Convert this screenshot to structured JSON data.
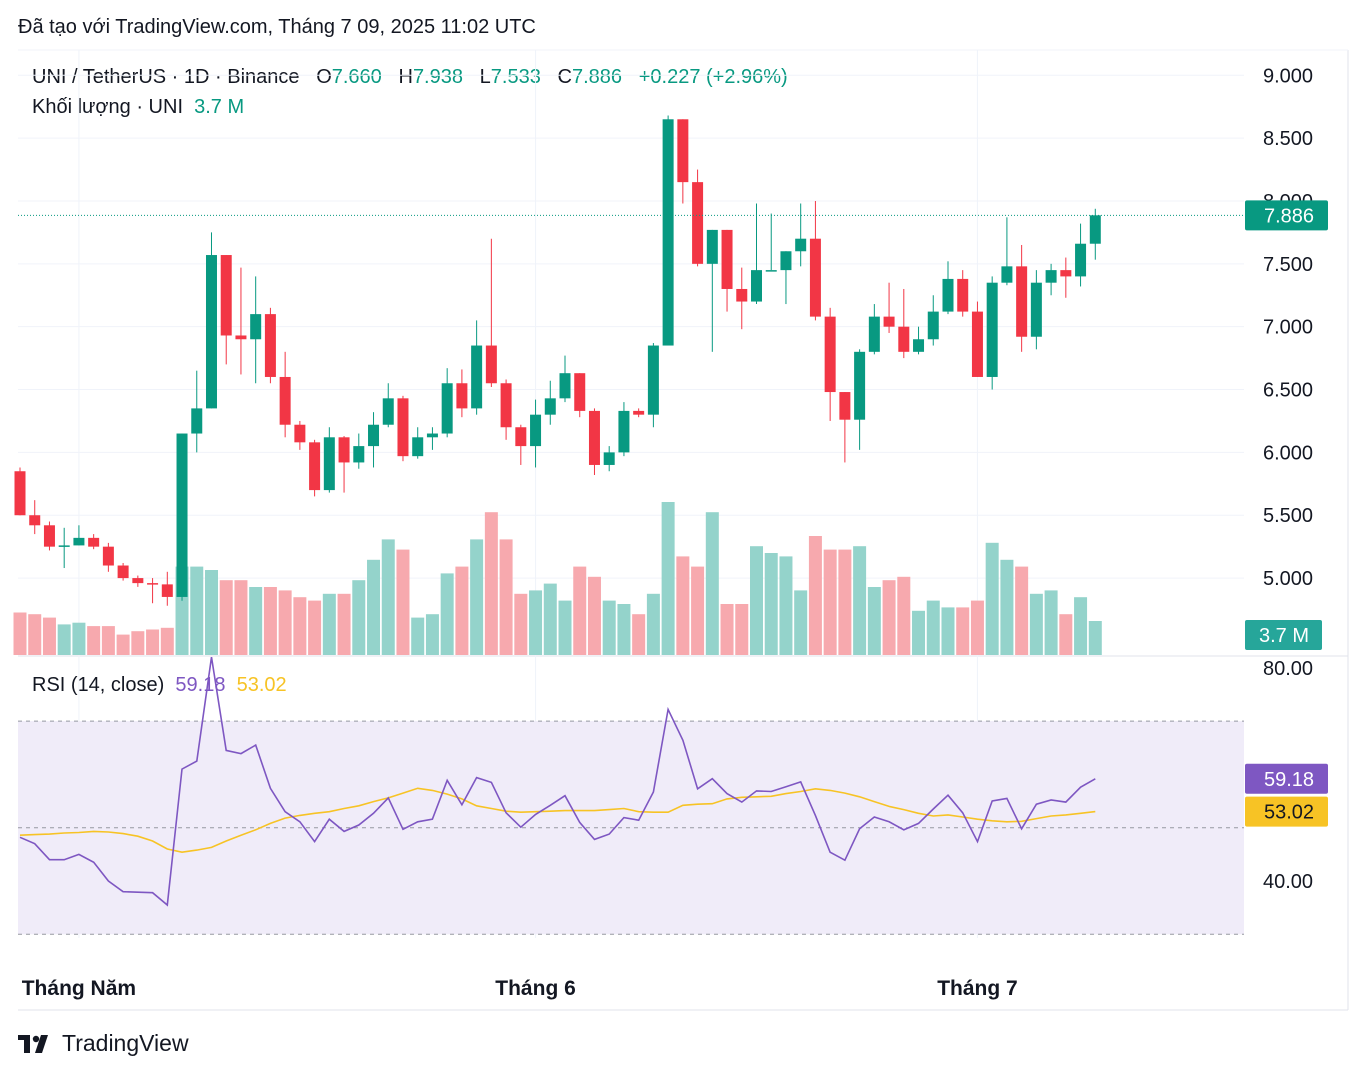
{
  "caption": "Đã tạo với TradingView.com, Tháng 7 09, 2025 11:02 UTC",
  "brand": {
    "name": "TradingView",
    "logo_text": "17"
  },
  "legend": {
    "pair": "UNI / TetherUS · 1D · Binance",
    "o_label": "O",
    "o_value": "7.660",
    "h_label": "H",
    "h_value": "7.938",
    "l_label": "L",
    "l_value": "7.533",
    "c_label": "C",
    "c_value": "7.886",
    "change": "+0.227 (+2.96%)",
    "volume_label": "Khối lượng · UNI",
    "volume_value": "3.7 M",
    "rsi_label": "RSI (14, close)",
    "rsi_value": "59.18",
    "rsi_ma_value": "53.02"
  },
  "colors": {
    "up": "#089981",
    "down": "#f23645",
    "vol_up": "#94d3cb",
    "vol_down": "#f7a9ae",
    "rsi": "#7e57c2",
    "rsi_ma": "#f7c325",
    "rsi_band": "#f0ecf9"
  },
  "chart_data": [
    {
      "type": "candlestick",
      "price_ticks": [
        "9.000",
        "8.500",
        "8.000",
        "7.500",
        "7.000",
        "6.500",
        "6.000",
        "5.500",
        "5.000"
      ],
      "price_range": [
        4.4,
        9.05
      ],
      "last_price_label": "7.886",
      "volume_last_label": "3.7 M",
      "x_labels": [
        {
          "label": "Tháng Năm",
          "index": 4
        },
        {
          "label": "Tháng 6",
          "index": 35
        },
        {
          "label": "Tháng 7",
          "index": 65
        }
      ],
      "candles": [
        [
          5.85,
          5.5,
          5.88,
          5.5,
          1.25
        ],
        [
          5.5,
          5.42,
          5.62,
          5.35,
          1.2
        ],
        [
          5.42,
          5.25,
          5.45,
          5.22,
          1.1
        ],
        [
          5.26,
          5.26,
          5.4,
          5.08,
          0.9
        ],
        [
          5.26,
          5.32,
          5.42,
          5.26,
          0.95
        ],
        [
          5.32,
          5.25,
          5.35,
          5.23,
          0.85
        ],
        [
          5.25,
          5.1,
          5.28,
          5.05,
          0.85
        ],
        [
          5.1,
          5.0,
          5.12,
          4.98,
          0.6
        ],
        [
          5.0,
          4.96,
          5.02,
          4.93,
          0.7
        ],
        [
          4.96,
          4.95,
          5.0,
          4.8,
          0.75
        ],
        [
          4.95,
          4.85,
          5.05,
          4.78,
          0.8
        ],
        [
          4.85,
          6.15,
          6.15,
          4.82,
          2.6
        ],
        [
          6.15,
          6.35,
          6.65,
          6.0,
          2.6
        ],
        [
          6.35,
          7.57,
          7.75,
          6.35,
          2.5
        ],
        [
          7.57,
          6.93,
          7.57,
          6.7,
          2.2
        ],
        [
          6.93,
          6.9,
          7.47,
          6.62,
          2.2
        ],
        [
          6.9,
          7.1,
          7.4,
          6.55,
          2.0
        ],
        [
          7.1,
          6.6,
          7.15,
          6.55,
          2.0
        ],
        [
          6.6,
          6.22,
          6.8,
          6.12,
          1.9
        ],
        [
          6.22,
          6.08,
          6.25,
          6.02,
          1.7
        ],
        [
          6.08,
          5.7,
          6.1,
          5.65,
          1.6
        ],
        [
          5.7,
          6.12,
          6.2,
          5.68,
          1.8
        ],
        [
          6.12,
          5.92,
          6.13,
          5.68,
          1.8
        ],
        [
          5.92,
          6.05,
          6.15,
          5.87,
          2.2
        ],
        [
          6.05,
          6.22,
          6.32,
          5.88,
          2.8
        ],
        [
          6.22,
          6.43,
          6.55,
          6.2,
          3.4
        ],
        [
          6.43,
          5.97,
          6.45,
          5.93,
          3.1
        ],
        [
          5.97,
          6.12,
          6.2,
          5.95,
          1.1
        ],
        [
          6.12,
          6.15,
          6.2,
          6.02,
          1.2
        ],
        [
          6.15,
          6.55,
          6.67,
          6.12,
          2.4
        ],
        [
          6.55,
          6.35,
          6.66,
          6.28,
          2.6
        ],
        [
          6.35,
          6.85,
          7.05,
          6.3,
          3.4
        ],
        [
          6.85,
          6.55,
          7.7,
          6.52,
          4.2
        ],
        [
          6.55,
          6.2,
          6.58,
          6.1,
          3.4
        ],
        [
          6.2,
          6.05,
          6.22,
          5.9,
          1.8
        ],
        [
          6.05,
          6.3,
          6.42,
          5.88,
          1.9
        ],
        [
          6.3,
          6.43,
          6.57,
          6.22,
          2.1
        ],
        [
          6.43,
          6.63,
          6.77,
          6.4,
          1.6
        ],
        [
          6.63,
          6.33,
          6.63,
          6.28,
          2.6
        ],
        [
          6.33,
          5.9,
          6.35,
          5.82,
          2.3
        ],
        [
          5.9,
          6.0,
          6.05,
          5.85,
          1.6
        ],
        [
          6.0,
          6.33,
          6.4,
          5.97,
          1.5
        ],
        [
          6.33,
          6.3,
          6.35,
          6.28,
          1.2
        ],
        [
          6.3,
          6.85,
          6.87,
          6.2,
          1.8
        ],
        [
          6.85,
          8.65,
          8.68,
          6.85,
          4.5
        ],
        [
          8.65,
          8.15,
          8.65,
          7.98,
          2.9
        ],
        [
          8.15,
          7.5,
          8.25,
          7.48,
          2.6
        ],
        [
          7.5,
          7.77,
          7.77,
          6.8,
          4.2
        ],
        [
          7.77,
          7.3,
          7.77,
          7.12,
          1.5
        ],
        [
          7.3,
          7.2,
          7.47,
          6.98,
          1.5
        ],
        [
          7.2,
          7.45,
          7.98,
          7.18,
          3.2
        ],
        [
          7.45,
          7.45,
          7.9,
          7.45,
          3.0
        ],
        [
          7.45,
          7.6,
          7.6,
          7.18,
          2.9
        ],
        [
          7.6,
          7.7,
          7.98,
          7.48,
          1.9
        ],
        [
          7.7,
          7.08,
          8.0,
          7.05,
          3.5
        ],
        [
          7.08,
          6.48,
          7.15,
          6.25,
          3.1
        ],
        [
          6.48,
          6.26,
          6.48,
          5.92,
          3.1
        ],
        [
          6.26,
          6.8,
          6.82,
          6.02,
          3.2
        ],
        [
          6.8,
          7.08,
          7.18,
          6.78,
          2.0
        ],
        [
          7.08,
          7.0,
          7.35,
          6.95,
          2.2
        ],
        [
          7.0,
          6.8,
          7.3,
          6.75,
          2.3
        ],
        [
          6.8,
          6.9,
          7.0,
          6.78,
          1.3
        ],
        [
          6.9,
          7.12,
          7.25,
          6.85,
          1.6
        ],
        [
          7.12,
          7.38,
          7.52,
          7.1,
          1.4
        ],
        [
          7.38,
          7.12,
          7.45,
          7.08,
          1.4
        ],
        [
          7.12,
          6.6,
          7.2,
          6.6,
          1.6
        ],
        [
          6.6,
          7.35,
          7.4,
          6.5,
          3.3
        ],
        [
          7.35,
          7.48,
          7.87,
          7.33,
          2.8
        ],
        [
          7.48,
          6.92,
          7.65,
          6.8,
          2.6
        ],
        [
          6.92,
          7.35,
          7.45,
          6.82,
          1.8
        ],
        [
          7.35,
          7.45,
          7.5,
          7.25,
          1.9
        ],
        [
          7.45,
          7.4,
          7.55,
          7.23,
          1.2
        ],
        [
          7.4,
          7.66,
          7.82,
          7.32,
          1.7
        ],
        [
          7.66,
          7.886,
          7.938,
          7.533,
          1.0
        ]
      ]
    },
    {
      "type": "line",
      "name": "RSI (14, close)",
      "range": [
        26,
        83
      ],
      "ticks": [
        "80.00",
        "40.00"
      ],
      "band": [
        30,
        70
      ],
      "midline": 50,
      "last_labels": {
        "rsi": "59.18",
        "ma": "53.02"
      },
      "rsi": [
        48.2,
        47.0,
        44.0,
        44.0,
        45.0,
        43.5,
        40.0,
        38.0,
        37.9,
        37.8,
        35.5,
        61.0,
        62.5,
        82.0,
        64.5,
        63.9,
        65.5,
        57.4,
        53.0,
        51.1,
        47.4,
        51.6,
        49.3,
        50.5,
        52.7,
        55.6,
        49.7,
        51.1,
        51.6,
        58.9,
        54.3,
        59.4,
        58.5,
        52.8,
        50.1,
        52.5,
        54.2,
        56.0,
        51.0,
        47.8,
        48.8,
        51.9,
        51.4,
        56.7,
        72.2,
        66.4,
        57.3,
        59.2,
        56.4,
        54.8,
        56.9,
        56.8,
        57.7,
        58.6,
        52.3,
        45.4,
        43.9,
        49.8,
        52.0,
        51.1,
        49.6,
        50.8,
        53.5,
        56.1,
        52.8,
        47.4,
        55.0,
        55.5,
        49.8,
        54.4,
        55.2,
        54.8,
        57.6,
        59.18
      ],
      "ma": [
        48.6,
        48.7,
        48.8,
        49.0,
        49.1,
        49.3,
        49.2,
        48.9,
        48.4,
        47.5,
        46.0,
        45.4,
        45.8,
        46.3,
        47.5,
        48.6,
        49.6,
        50.8,
        51.8,
        52.3,
        52.7,
        53.0,
        53.6,
        54.1,
        54.9,
        55.6,
        56.5,
        57.4,
        57.0,
        56.3,
        55.4,
        54.1,
        53.6,
        53.1,
        52.9,
        53.0,
        53.1,
        53.2,
        53.2,
        53.2,
        53.4,
        53.6,
        53.0,
        52.9,
        52.9,
        54.2,
        54.4,
        54.5,
        55.4,
        55.7,
        55.8,
        55.9,
        56.4,
        56.8,
        57.3,
        57.0,
        56.5,
        55.8,
        54.9,
        54.0,
        53.4,
        52.7,
        52.2,
        52.4,
        52.0,
        51.6,
        51.3,
        51.1,
        51.2,
        51.7,
        52.2,
        52.4,
        52.7,
        53.02
      ]
    }
  ]
}
